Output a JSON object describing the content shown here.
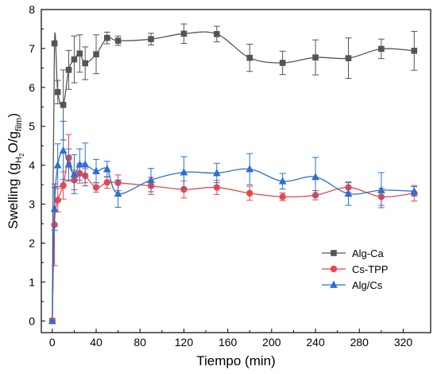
{
  "chart_data": {
    "type": "line",
    "xlabel": "Tiempo (min)",
    "ylabel": {
      "main": "Swelling (g",
      "sub1": "H",
      "sub2": "2",
      "mid": "O",
      "sep": "/g",
      "sub3": "film",
      "end": ")"
    },
    "xlim": [
      -10,
      345
    ],
    "ylim": [
      -0.3,
      8
    ],
    "xticks": [
      0,
      40,
      80,
      120,
      160,
      200,
      240,
      280,
      320
    ],
    "yticks": [
      0,
      1,
      2,
      3,
      4,
      5,
      6,
      7,
      8
    ],
    "grid": false,
    "legend_position": "lower-right",
    "series": [
      {
        "name": "Alg-Ca",
        "color": "#555555",
        "marker": "square",
        "x": [
          0,
          2,
          5,
          10,
          15,
          20,
          25,
          30,
          40,
          50,
          60,
          90,
          120,
          150,
          180,
          210,
          240,
          270,
          300,
          330
        ],
        "y": [
          0,
          7.13,
          5.88,
          5.55,
          6.45,
          6.72,
          6.87,
          6.62,
          6.85,
          7.27,
          7.2,
          7.24,
          7.38,
          7.37,
          6.76,
          6.63,
          6.77,
          6.75,
          6.99,
          6.94
        ],
        "err": [
          0,
          0,
          0.3,
          0.9,
          0.5,
          0.6,
          0.48,
          0.42,
          0.5,
          0.15,
          0.12,
          0.15,
          0.25,
          0.2,
          0.35,
          0.3,
          0.45,
          0.52,
          0.25,
          0.5
        ]
      },
      {
        "name": "Cs-TPP",
        "color": "#e8474c",
        "marker": "circle",
        "x": [
          0,
          2,
          5,
          10,
          15,
          20,
          25,
          30,
          40,
          50,
          60,
          90,
          120,
          150,
          180,
          210,
          240,
          270,
          300,
          330
        ],
        "y": [
          0,
          2.47,
          3.1,
          3.48,
          4.19,
          3.62,
          3.79,
          3.73,
          3.43,
          3.56,
          3.55,
          3.47,
          3.38,
          3.43,
          3.28,
          3.19,
          3.23,
          3.43,
          3.19,
          3.28
        ],
        "err": [
          0,
          1.05,
          0.3,
          0.35,
          0.6,
          0.25,
          0.25,
          0.18,
          0.12,
          0.15,
          0.2,
          0.22,
          0.22,
          0.18,
          0.18,
          0.1,
          0.12,
          0.12,
          0.22,
          0.2
        ]
      },
      {
        "name": "Alg/Cs",
        "color": "#2a6fd3",
        "marker": "triangle",
        "x": [
          0,
          2,
          5,
          10,
          15,
          20,
          25,
          30,
          40,
          50,
          60,
          90,
          120,
          150,
          180,
          210,
          240,
          270,
          300,
          330
        ],
        "y": [
          0,
          2.88,
          4.0,
          4.38,
          4.02,
          3.77,
          4.02,
          4.02,
          3.85,
          3.9,
          3.27,
          3.62,
          3.82,
          3.8,
          3.9,
          3.59,
          3.7,
          3.27,
          3.36,
          3.33
        ],
        "err": [
          0,
          0.55,
          0.55,
          0.75,
          0.4,
          0.5,
          0.4,
          0.55,
          0.3,
          0.2,
          0.35,
          0.3,
          0.4,
          0.25,
          0.4,
          0.2,
          0.5,
          0.3,
          0.45,
          0.12
        ]
      }
    ]
  }
}
